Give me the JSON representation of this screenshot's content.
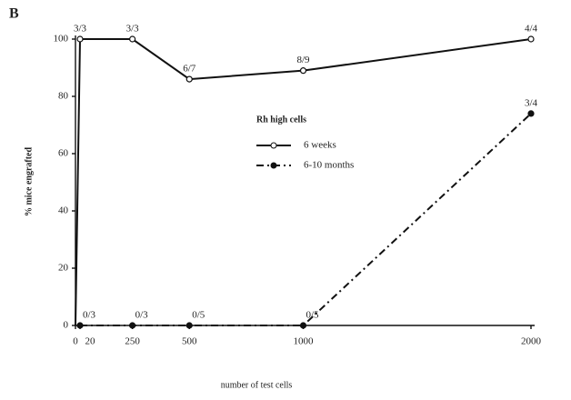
{
  "panel_label": "B",
  "chart_data": {
    "type": "line",
    "y_label": "% mice engrafted",
    "x_label": "number of test cells",
    "legend_title": "Rh high cells",
    "xlim": [
      0,
      2000
    ],
    "xticks": [
      0,
      20,
      250,
      500,
      1000,
      2000
    ],
    "ylim": [
      0,
      100
    ],
    "yticks": [
      0,
      20,
      40,
      60,
      80,
      100
    ],
    "series": [
      {
        "name": "6 weeks",
        "color": "#111111",
        "line_style": "solid",
        "marker": "open",
        "x": [
          0,
          20,
          250,
          500,
          1000,
          2000
        ],
        "values": [
          0,
          100,
          100,
          86,
          89,
          100
        ],
        "point_labels": [
          null,
          "3/3",
          "3/3",
          "6/7",
          "8/9",
          "4/4"
        ]
      },
      {
        "name": "6-10 months",
        "color": "#111111",
        "line_style": "dashdot",
        "marker": "filled",
        "x": [
          20,
          250,
          500,
          1000,
          2000
        ],
        "values": [
          0,
          0,
          0,
          0,
          74
        ],
        "point_labels": [
          "0/3",
          "0/3",
          "0/5",
          "0/5",
          "3/4"
        ]
      }
    ]
  }
}
